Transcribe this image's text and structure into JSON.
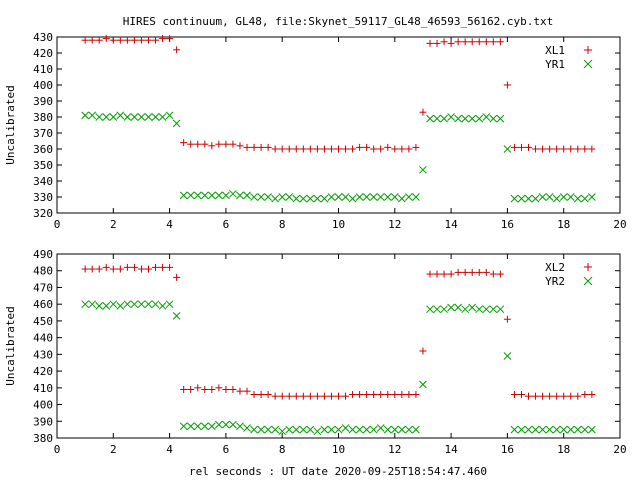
{
  "chart_data": {
    "type": "scatter",
    "title": "HIRES continuum, GL48, file:Skynet_59117_GL48_46593_56162.cyb.txt",
    "xlabel": "rel seconds : UT date 2020-09-25T18:54:47.460",
    "colors": {
      "red": "#cc0000",
      "green": "#00a000"
    },
    "panels": [
      {
        "ylabel": "Uncalibrated",
        "xlim": [
          0,
          20
        ],
        "ylim": [
          320,
          430
        ],
        "xticks": [
          0,
          2,
          4,
          6,
          8,
          10,
          12,
          14,
          16,
          18,
          20
        ],
        "yticks": [
          320,
          330,
          340,
          350,
          360,
          370,
          380,
          390,
          400,
          410,
          420,
          430
        ],
        "legend_position": "top-right",
        "series": [
          {
            "name": "XL1",
            "marker": "plus",
            "color": "#cc0000",
            "x": [
              1.0,
              1.25,
              1.5,
              1.75,
              2.0,
              2.25,
              2.5,
              2.75,
              3.0,
              3.25,
              3.5,
              3.75,
              4.0,
              4.25,
              4.5,
              4.75,
              5.0,
              5.25,
              5.5,
              5.75,
              6.0,
              6.25,
              6.5,
              6.75,
              7.0,
              7.25,
              7.5,
              7.75,
              8.0,
              8.25,
              8.5,
              8.75,
              9.0,
              9.25,
              9.5,
              9.75,
              10.0,
              10.25,
              10.5,
              10.75,
              11.0,
              11.25,
              11.5,
              11.75,
              12.0,
              12.25,
              12.5,
              12.75,
              13.0,
              13.25,
              13.5,
              13.75,
              14.0,
              14.25,
              14.5,
              14.75,
              15.0,
              15.25,
              15.5,
              15.75,
              16.0,
              16.25,
              16.5,
              16.75,
              17.0,
              17.25,
              17.5,
              17.75,
              18.0,
              18.25,
              18.5,
              18.75,
              19.0
            ],
            "y": [
              428,
              428,
              428,
              429,
              428,
              428,
              428,
              428,
              428,
              428,
              428,
              429,
              429,
              422,
              364,
              363,
              363,
              363,
              362,
              363,
              363,
              363,
              362,
              361,
              361,
              361,
              361,
              360,
              360,
              360,
              360,
              360,
              360,
              360,
              360,
              360,
              360,
              360,
              360,
              361,
              361,
              360,
              360,
              361,
              360,
              360,
              360,
              361,
              383,
              426,
              426,
              427,
              426,
              427,
              427,
              427,
              427,
              427,
              427,
              427,
              400,
              361,
              361,
              361,
              360,
              360,
              360,
              360,
              360,
              360,
              360,
              360,
              360
            ]
          },
          {
            "name": "YR1",
            "marker": "cross",
            "color": "#00a000",
            "x": [
              1.0,
              1.25,
              1.5,
              1.75,
              2.0,
              2.25,
              2.5,
              2.75,
              3.0,
              3.25,
              3.5,
              3.75,
              4.0,
              4.25,
              4.5,
              4.75,
              5.0,
              5.25,
              5.5,
              5.75,
              6.0,
              6.25,
              6.5,
              6.75,
              7.0,
              7.25,
              7.5,
              7.75,
              8.0,
              8.25,
              8.5,
              8.75,
              9.0,
              9.25,
              9.5,
              9.75,
              10.0,
              10.25,
              10.5,
              10.75,
              11.0,
              11.25,
              11.5,
              11.75,
              12.0,
              12.25,
              12.5,
              12.75,
              13.0,
              13.25,
              13.5,
              13.75,
              14.0,
              14.25,
              14.5,
              14.75,
              15.0,
              15.25,
              15.5,
              15.75,
              16.0,
              16.25,
              16.5,
              16.75,
              17.0,
              17.25,
              17.5,
              17.75,
              18.0,
              18.25,
              18.5,
              18.75,
              19.0
            ],
            "y": [
              381,
              381,
              380,
              380,
              380,
              381,
              380,
              380,
              380,
              380,
              380,
              380,
              381,
              376,
              331,
              331,
              331,
              331,
              331,
              331,
              331,
              332,
              331,
              331,
              330,
              330,
              330,
              329,
              330,
              330,
              329,
              329,
              329,
              329,
              329,
              330,
              330,
              330,
              329,
              330,
              330,
              330,
              330,
              330,
              330,
              329,
              330,
              330,
              347,
              379,
              379,
              379,
              380,
              379,
              379,
              379,
              379,
              380,
              379,
              379,
              360,
              329,
              329,
              329,
              329,
              330,
              330,
              329,
              330,
              330,
              329,
              329,
              330
            ]
          }
        ]
      },
      {
        "ylabel": "Uncalibrated",
        "xlim": [
          0,
          20
        ],
        "ylim": [
          380,
          490
        ],
        "xticks": [
          0,
          2,
          4,
          6,
          8,
          10,
          12,
          14,
          16,
          18,
          20
        ],
        "yticks": [
          380,
          390,
          400,
          410,
          420,
          430,
          440,
          450,
          460,
          470,
          480,
          490
        ],
        "legend_position": "top-right",
        "series": [
          {
            "name": "XL2",
            "marker": "plus",
            "color": "#cc0000",
            "x": [
              1.0,
              1.25,
              1.5,
              1.75,
              2.0,
              2.25,
              2.5,
              2.75,
              3.0,
              3.25,
              3.5,
              3.75,
              4.0,
              4.25,
              4.5,
              4.75,
              5.0,
              5.25,
              5.5,
              5.75,
              6.0,
              6.25,
              6.5,
              6.75,
              7.0,
              7.25,
              7.5,
              7.75,
              8.0,
              8.25,
              8.5,
              8.75,
              9.0,
              9.25,
              9.5,
              9.75,
              10.0,
              10.25,
              10.5,
              10.75,
              11.0,
              11.25,
              11.5,
              11.75,
              12.0,
              12.25,
              12.5,
              12.75,
              13.0,
              13.25,
              13.5,
              13.75,
              14.0,
              14.25,
              14.5,
              14.75,
              15.0,
              15.25,
              15.5,
              15.75,
              16.0,
              16.25,
              16.5,
              16.75,
              17.0,
              17.25,
              17.5,
              17.75,
              18.0,
              18.25,
              18.5,
              18.75,
              19.0
            ],
            "y": [
              481,
              481,
              481,
              482,
              481,
              481,
              482,
              482,
              481,
              481,
              482,
              482,
              482,
              476,
              409,
              409,
              410,
              409,
              409,
              410,
              409,
              409,
              408,
              408,
              406,
              406,
              406,
              405,
              405,
              405,
              405,
              405,
              405,
              405,
              405,
              405,
              405,
              405,
              406,
              406,
              406,
              406,
              406,
              406,
              406,
              406,
              406,
              406,
              432,
              478,
              478,
              478,
              478,
              479,
              479,
              479,
              479,
              479,
              478,
              478,
              451,
              406,
              406,
              405,
              405,
              405,
              405,
              405,
              405,
              405,
              405,
              406,
              406
            ]
          },
          {
            "name": "YR2",
            "marker": "cross",
            "color": "#00a000",
            "x": [
              1.0,
              1.25,
              1.5,
              1.75,
              2.0,
              2.25,
              2.5,
              2.75,
              3.0,
              3.25,
              3.5,
              3.75,
              4.0,
              4.25,
              4.5,
              4.75,
              5.0,
              5.25,
              5.5,
              5.75,
              6.0,
              6.25,
              6.5,
              6.75,
              7.0,
              7.25,
              7.5,
              7.75,
              8.0,
              8.25,
              8.5,
              8.75,
              9.0,
              9.25,
              9.5,
              9.75,
              10.0,
              10.25,
              10.5,
              10.75,
              11.0,
              11.25,
              11.5,
              11.75,
              12.0,
              12.25,
              12.5,
              12.75,
              13.0,
              13.25,
              13.5,
              13.75,
              14.0,
              14.25,
              14.5,
              14.75,
              15.0,
              15.25,
              15.5,
              15.75,
              16.0,
              16.25,
              16.5,
              16.75,
              17.0,
              17.25,
              17.5,
              17.75,
              18.0,
              18.25,
              18.5,
              18.75,
              19.0
            ],
            "y": [
              460,
              460,
              459,
              459,
              460,
              459,
              460,
              460,
              460,
              460,
              460,
              459,
              460,
              453,
              387,
              387,
              387,
              387,
              387,
              388,
              388,
              388,
              387,
              386,
              385,
              385,
              385,
              385,
              384,
              385,
              385,
              385,
              385,
              384,
              385,
              385,
              385,
              386,
              385,
              385,
              385,
              385,
              386,
              385,
              385,
              385,
              385,
              385,
              412,
              457,
              457,
              457,
              458,
              458,
              457,
              458,
              457,
              457,
              457,
              457,
              429,
              385,
              385,
              385,
              385,
              385,
              385,
              385,
              385,
              385,
              385,
              385,
              385
            ]
          }
        ]
      }
    ]
  }
}
